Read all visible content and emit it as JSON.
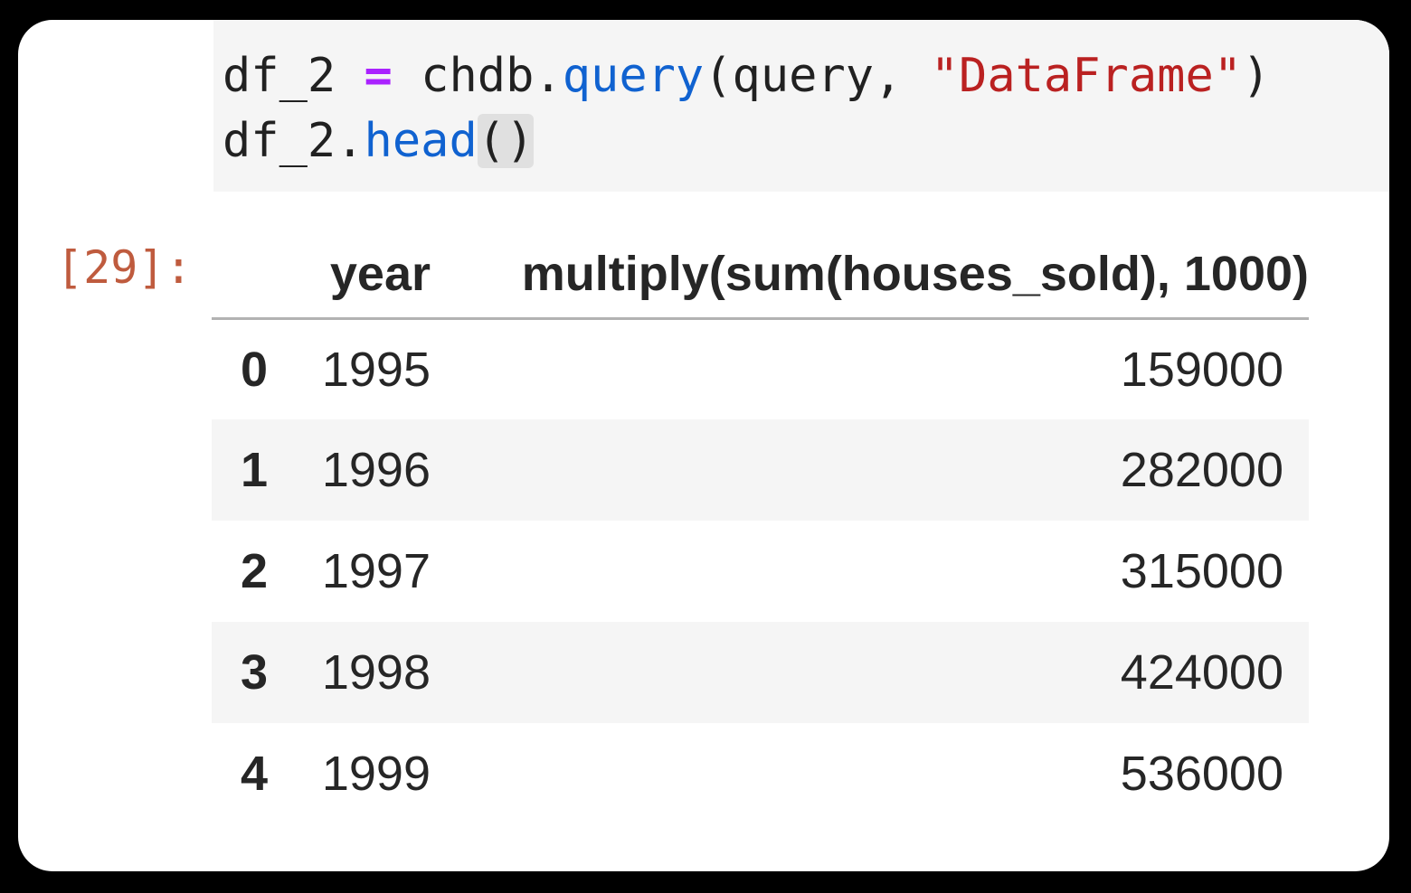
{
  "output": {
    "prompt": "[29]:"
  },
  "code": {
    "line1": {
      "seg1": "df_2 ",
      "op": "=",
      "seg2": " chdb.",
      "fn": "query",
      "seg3": "(query, ",
      "str": "\"DataFrame\"",
      "seg4": ")"
    },
    "line2": {
      "seg1": "df_2.",
      "fn": "head",
      "brackets": "()"
    }
  },
  "table": {
    "columns": [
      "year",
      "multiply(sum(houses_sold), 1000)"
    ],
    "rows": [
      {
        "index": "0",
        "year": "1995",
        "value": "159000"
      },
      {
        "index": "1",
        "year": "1996",
        "value": "282000"
      },
      {
        "index": "2",
        "year": "1997",
        "value": "315000"
      },
      {
        "index": "3",
        "year": "1998",
        "value": "424000"
      },
      {
        "index": "4",
        "year": "1999",
        "value": "536000"
      }
    ]
  },
  "colors": {
    "page_background": "#000000",
    "panel_background": "#ffffff",
    "cell_background": "#f5f5f5",
    "stripe_background": "#f5f5f5",
    "bracket_highlight": "#e0e0e0",
    "code_default": "#212121",
    "operator": "#aa22ff",
    "function": "#1062d0",
    "string": "#ba2121",
    "out_prompt": "#bf5b3e",
    "header_rule": "#b2b2b2",
    "table_text": "#262626"
  }
}
